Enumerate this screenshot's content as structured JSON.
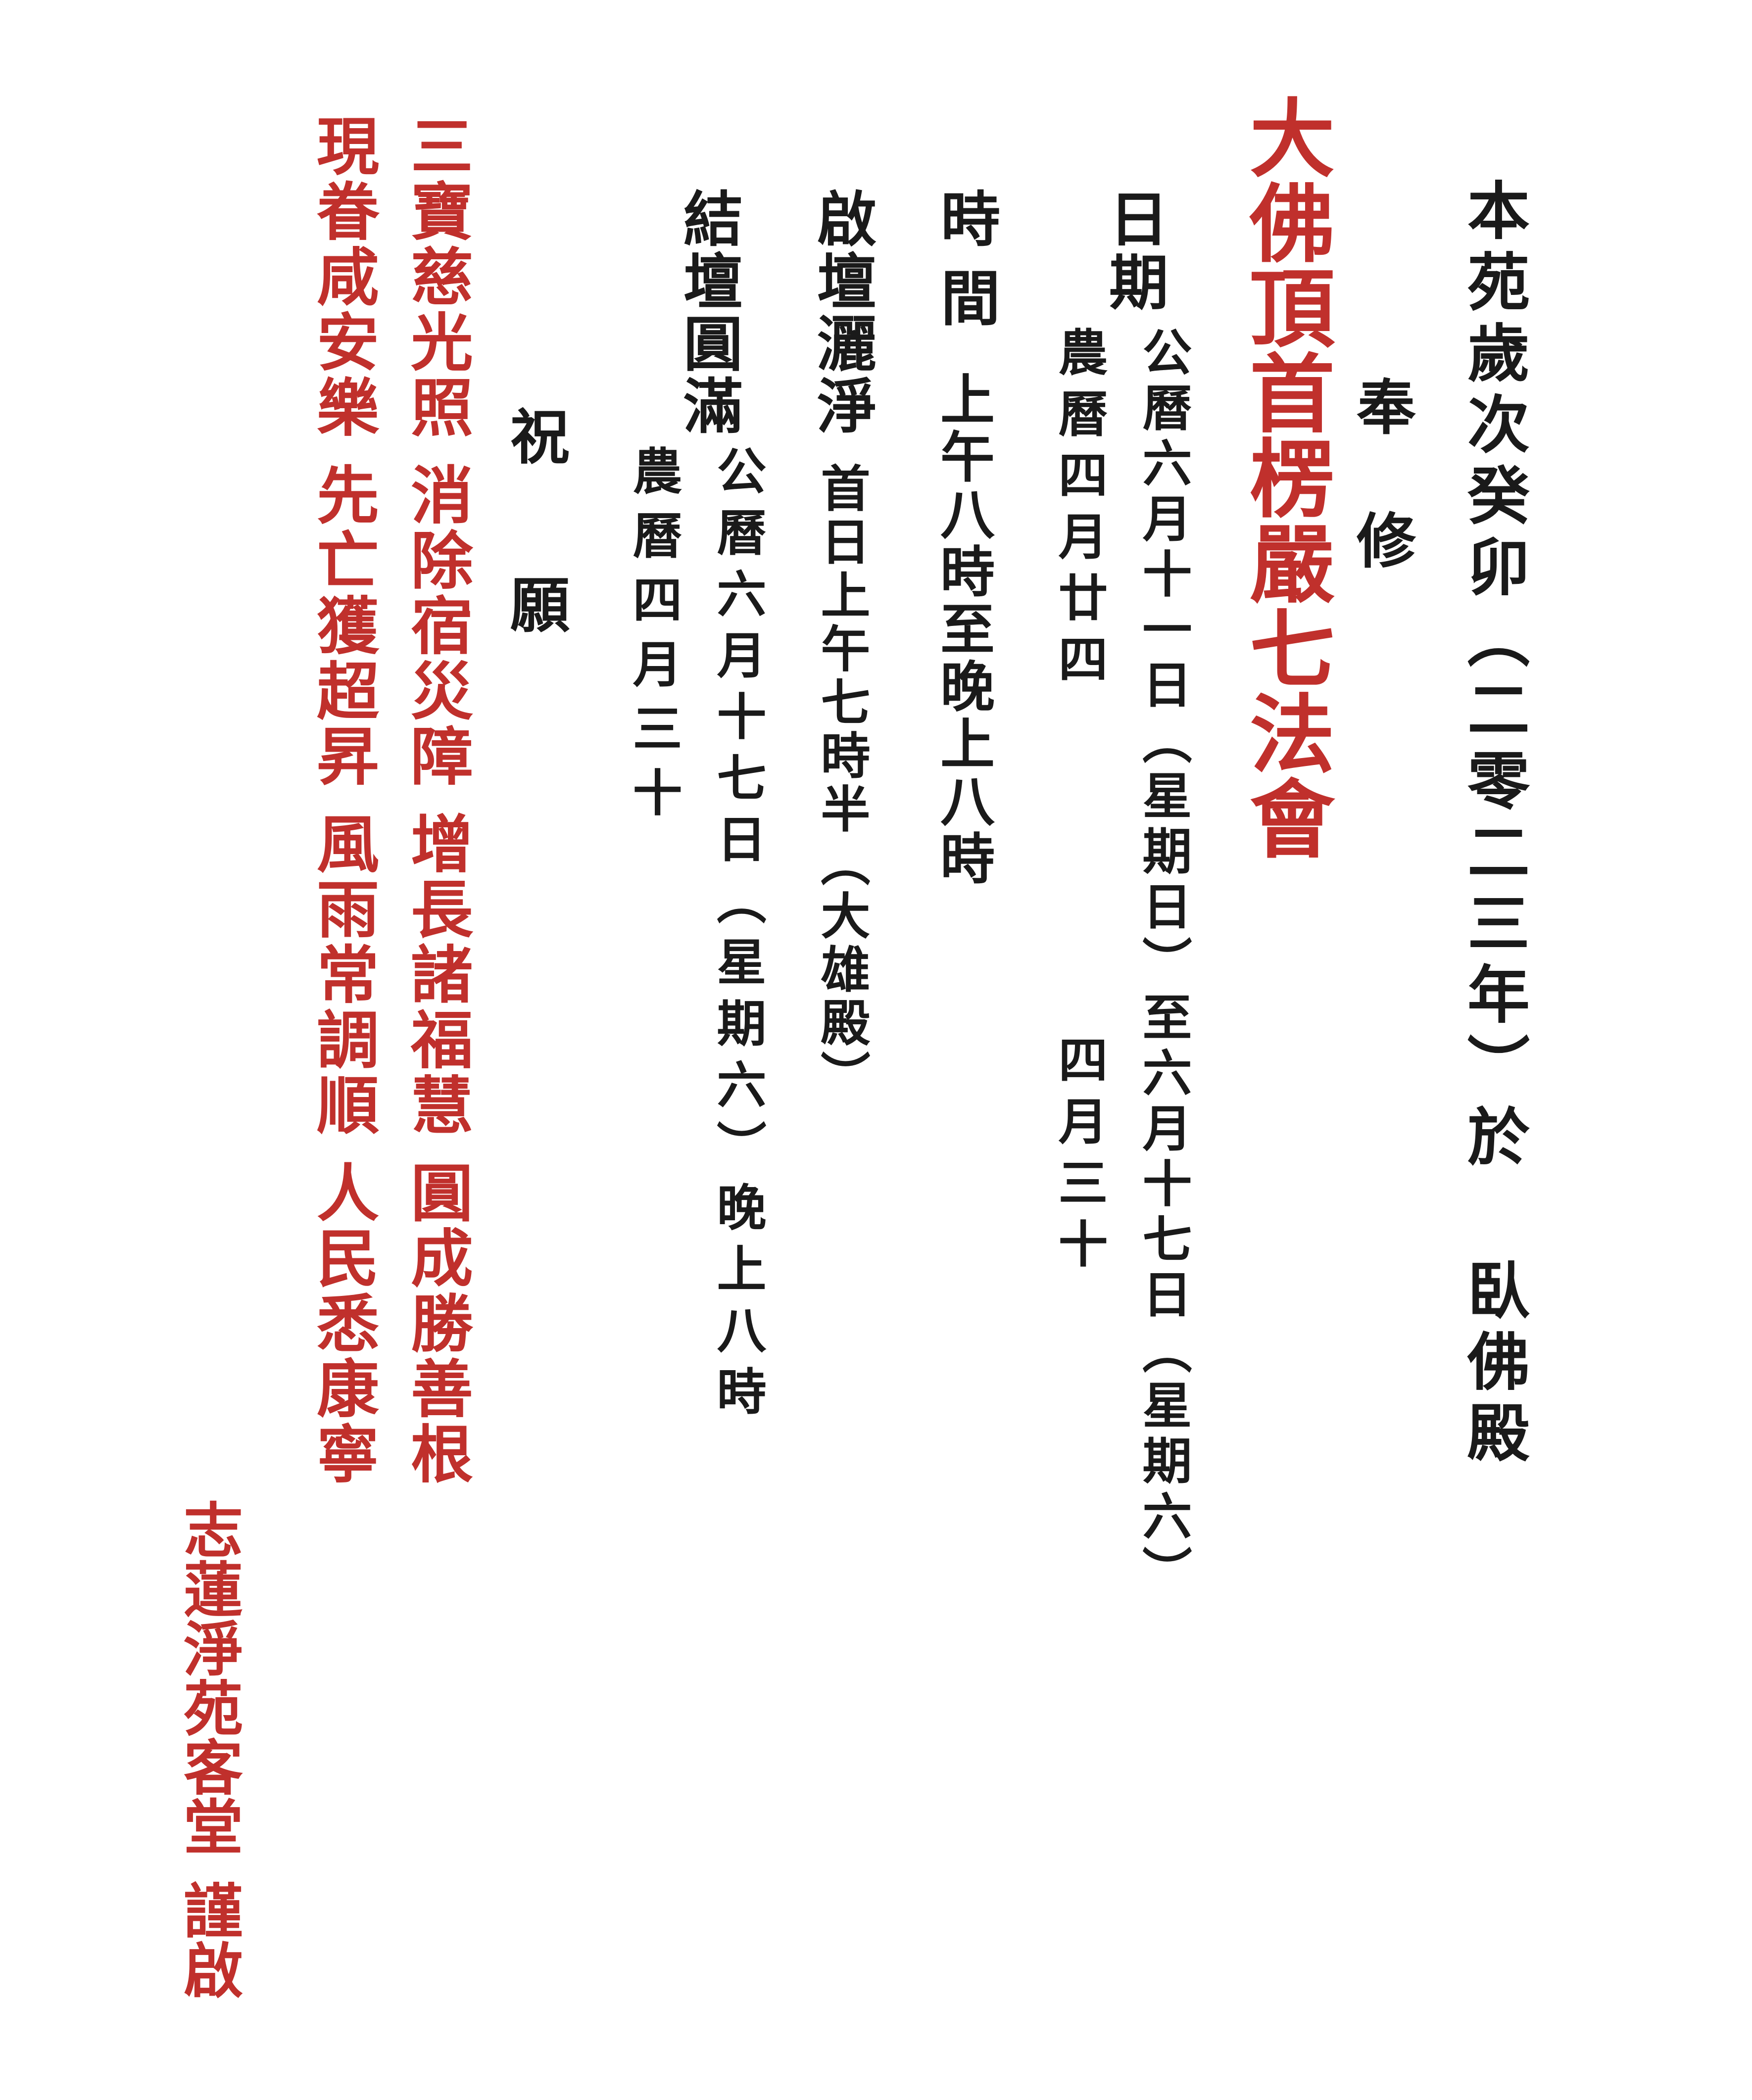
{
  "colors": {
    "text": "#1a1a1a",
    "accent": "#c0302c"
  },
  "header": {
    "line": "本苑歲次癸卯（二零二三年）於 臥佛殿"
  },
  "feng_xiu": {
    "char1": "奉",
    "char2": "修"
  },
  "event": {
    "title": "大佛頂首楞嚴七法會"
  },
  "date": {
    "label": "日期",
    "line_gregorian": "公曆六月十一日（星期日）至六月十七日（星期六）",
    "col_lunar": "農曆四月廿四",
    "lunar_to": "四月三十"
  },
  "time": {
    "label": "時間",
    "value": "上午八時至晚上八時"
  },
  "opening": {
    "label": "啟壇灑淨",
    "value": "首日上午七時半（大雄殿）"
  },
  "closing": {
    "label": "結壇圓滿",
    "gregorian": "公曆六月十七日（星期六）晚上八時",
    "lunar": "農曆四月三十"
  },
  "blessing": {
    "char1": "祝",
    "char2": "願"
  },
  "prayers": {
    "col1": [
      "三寶慈光照",
      "消除宿災障",
      "增長諸福慧",
      "圓成勝善根"
    ],
    "col2": [
      "現眷咸安樂",
      "先亡獲超昇",
      "風雨常調順",
      "人民悉康寧"
    ]
  },
  "footer": {
    "org": "志蓮淨苑客堂",
    "closing": "謹啟"
  }
}
